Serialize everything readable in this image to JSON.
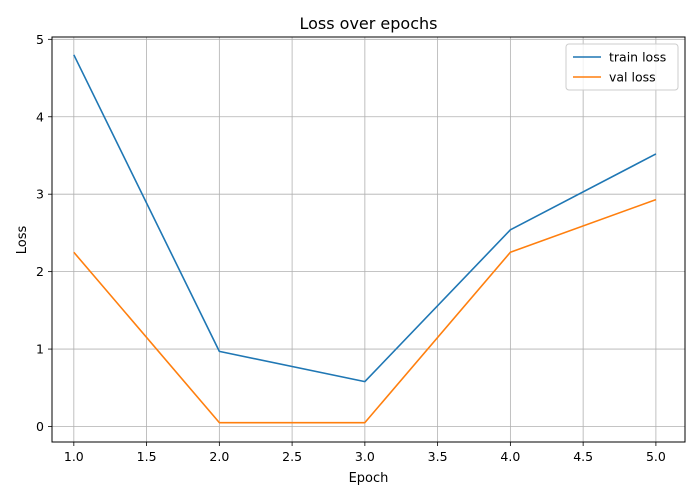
{
  "chart_data": {
    "type": "line",
    "title": "Loss over epochs",
    "xlabel": "Epoch",
    "ylabel": "Loss",
    "x": [
      1.0,
      2.0,
      3.0,
      4.0,
      5.0
    ],
    "series": [
      {
        "name": "train loss",
        "color": "#1f77b4",
        "values": [
          4.8,
          0.97,
          0.58,
          2.54,
          3.52
        ]
      },
      {
        "name": "val loss",
        "color": "#ff7f0e",
        "values": [
          2.25,
          0.05,
          0.05,
          2.25,
          2.93
        ]
      }
    ],
    "xlim": [
      0.85,
      5.2
    ],
    "ylim": [
      -0.2,
      5.03
    ],
    "xticks": [
      1.0,
      1.5,
      2.0,
      2.5,
      3.0,
      3.5,
      4.0,
      4.5,
      5.0
    ],
    "xtick_labels": [
      "1.0",
      "1.5",
      "2.0",
      "2.5",
      "3.0",
      "3.5",
      "4.0",
      "4.5",
      "5.0"
    ],
    "yticks": [
      0,
      1,
      2,
      3,
      4,
      5
    ],
    "ytick_labels": [
      "0",
      "1",
      "2",
      "3",
      "4",
      "5"
    ],
    "grid": true,
    "legend_position": "top-right"
  }
}
